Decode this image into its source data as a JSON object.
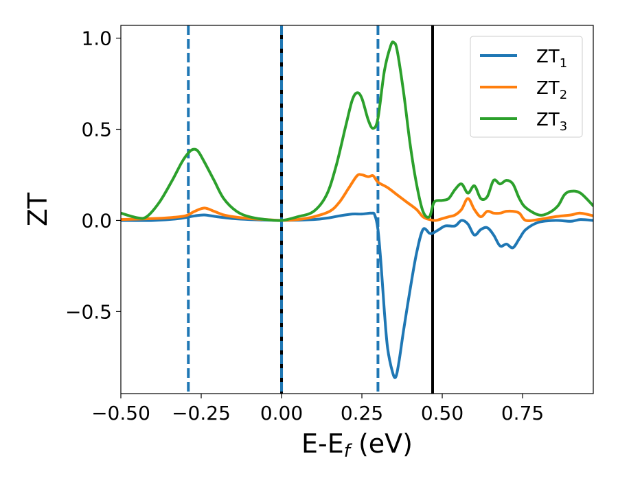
{
  "chart_data": {
    "type": "line",
    "title": "",
    "xlabel": {
      "main": "E-E",
      "sub": "f",
      "suffix": " (eV)"
    },
    "ylabel": "ZT",
    "xlim": [
      -0.5,
      0.97
    ],
    "ylim": [
      -0.95,
      1.07
    ],
    "xticks": [
      -0.5,
      -0.25,
      0.0,
      0.25,
      0.5,
      0.75
    ],
    "xtick_labels": [
      "−0.50",
      "−0.25",
      "0.00",
      "0.25",
      "0.50",
      "0.75"
    ],
    "yticks": [
      -0.5,
      0.0,
      0.5,
      1.0
    ],
    "ytick_labels": [
      "−0.5",
      "0.0",
      "0.5",
      "1.0"
    ],
    "grid": false,
    "legend_position": "top-right",
    "vlines": [
      {
        "x": -0.29,
        "style": "dashed",
        "color": "#1f77b4"
      },
      {
        "x": 0.0,
        "style": "solid",
        "color": "#000000"
      },
      {
        "x": 0.0,
        "style": "dashed",
        "color": "#1f77b4"
      },
      {
        "x": 0.3,
        "style": "dashed",
        "color": "#1f77b4"
      },
      {
        "x": 0.47,
        "style": "solid",
        "color": "#000000"
      }
    ],
    "series": [
      {
        "name": "ZT",
        "sub": "1",
        "color": "#1f77b4",
        "points": [
          [
            -0.5,
            0.0
          ],
          [
            -0.4,
            0.0
          ],
          [
            -0.32,
            0.01
          ],
          [
            -0.27,
            0.025
          ],
          [
            -0.24,
            0.03
          ],
          [
            -0.2,
            0.02
          ],
          [
            -0.15,
            0.01
          ],
          [
            -0.1,
            0.005
          ],
          [
            0.0,
            0.0
          ],
          [
            0.1,
            0.005
          ],
          [
            0.15,
            0.015
          ],
          [
            0.18,
            0.025
          ],
          [
            0.22,
            0.035
          ],
          [
            0.25,
            0.035
          ],
          [
            0.28,
            0.04
          ],
          [
            0.29,
            0.03
          ],
          [
            0.3,
            -0.05
          ],
          [
            0.31,
            -0.25
          ],
          [
            0.32,
            -0.5
          ],
          [
            0.33,
            -0.7
          ],
          [
            0.345,
            -0.83
          ],
          [
            0.355,
            -0.86
          ],
          [
            0.365,
            -0.78
          ],
          [
            0.38,
            -0.6
          ],
          [
            0.4,
            -0.38
          ],
          [
            0.42,
            -0.18
          ],
          [
            0.44,
            -0.05
          ],
          [
            0.46,
            -0.07
          ],
          [
            0.47,
            -0.07
          ],
          [
            0.49,
            -0.05
          ],
          [
            0.51,
            -0.03
          ],
          [
            0.54,
            -0.03
          ],
          [
            0.56,
            0.0
          ],
          [
            0.58,
            -0.02
          ],
          [
            0.6,
            -0.08
          ],
          [
            0.62,
            -0.05
          ],
          [
            0.64,
            -0.04
          ],
          [
            0.66,
            -0.08
          ],
          [
            0.68,
            -0.14
          ],
          [
            0.7,
            -0.13
          ],
          [
            0.72,
            -0.15
          ],
          [
            0.74,
            -0.1
          ],
          [
            0.76,
            -0.05
          ],
          [
            0.8,
            -0.01
          ],
          [
            0.85,
            0.0
          ],
          [
            0.9,
            -0.005
          ],
          [
            0.93,
            0.005
          ],
          [
            0.97,
            0.0
          ]
        ]
      },
      {
        "name": "ZT",
        "sub": "2",
        "color": "#ff7f0e",
        "points": [
          [
            -0.5,
            0.005
          ],
          [
            -0.4,
            0.01
          ],
          [
            -0.35,
            0.015
          ],
          [
            -0.3,
            0.025
          ],
          [
            -0.27,
            0.05
          ],
          [
            -0.24,
            0.068
          ],
          [
            -0.21,
            0.05
          ],
          [
            -0.18,
            0.03
          ],
          [
            -0.15,
            0.02
          ],
          [
            -0.1,
            0.01
          ],
          [
            -0.05,
            0.005
          ],
          [
            0.0,
            0.0
          ],
          [
            0.05,
            0.005
          ],
          [
            0.1,
            0.02
          ],
          [
            0.15,
            0.05
          ],
          [
            0.18,
            0.1
          ],
          [
            0.21,
            0.18
          ],
          [
            0.235,
            0.245
          ],
          [
            0.25,
            0.25
          ],
          [
            0.27,
            0.24
          ],
          [
            0.285,
            0.245
          ],
          [
            0.3,
            0.21
          ],
          [
            0.33,
            0.18
          ],
          [
            0.36,
            0.14
          ],
          [
            0.39,
            0.1
          ],
          [
            0.42,
            0.06
          ],
          [
            0.44,
            0.02
          ],
          [
            0.46,
            0.005
          ],
          [
            0.48,
            0.0
          ],
          [
            0.5,
            0.01
          ],
          [
            0.52,
            0.02
          ],
          [
            0.54,
            0.03
          ],
          [
            0.56,
            0.06
          ],
          [
            0.58,
            0.12
          ],
          [
            0.6,
            0.06
          ],
          [
            0.62,
            0.02
          ],
          [
            0.64,
            0.05
          ],
          [
            0.66,
            0.04
          ],
          [
            0.68,
            0.04
          ],
          [
            0.7,
            0.05
          ],
          [
            0.72,
            0.05
          ],
          [
            0.74,
            0.04
          ],
          [
            0.76,
            0.0
          ],
          [
            0.8,
            0.005
          ],
          [
            0.85,
            0.02
          ],
          [
            0.9,
            0.03
          ],
          [
            0.93,
            0.04
          ],
          [
            0.97,
            0.025
          ]
        ]
      },
      {
        "name": "ZT",
        "sub": "3",
        "color": "#2ca02c",
        "points": [
          [
            -0.5,
            0.04
          ],
          [
            -0.45,
            0.015
          ],
          [
            -0.42,
            0.02
          ],
          [
            -0.38,
            0.1
          ],
          [
            -0.34,
            0.22
          ],
          [
            -0.31,
            0.32
          ],
          [
            -0.29,
            0.37
          ],
          [
            -0.275,
            0.39
          ],
          [
            -0.26,
            0.38
          ],
          [
            -0.24,
            0.32
          ],
          [
            -0.21,
            0.22
          ],
          [
            -0.18,
            0.12
          ],
          [
            -0.14,
            0.05
          ],
          [
            -0.1,
            0.02
          ],
          [
            -0.05,
            0.005
          ],
          [
            0.0,
            0.0
          ],
          [
            0.05,
            0.02
          ],
          [
            0.1,
            0.05
          ],
          [
            0.14,
            0.14
          ],
          [
            0.17,
            0.3
          ],
          [
            0.2,
            0.52
          ],
          [
            0.22,
            0.66
          ],
          [
            0.235,
            0.7
          ],
          [
            0.25,
            0.67
          ],
          [
            0.27,
            0.55
          ],
          [
            0.285,
            0.505
          ],
          [
            0.3,
            0.56
          ],
          [
            0.32,
            0.82
          ],
          [
            0.34,
            0.96
          ],
          [
            0.35,
            0.975
          ],
          [
            0.36,
            0.93
          ],
          [
            0.38,
            0.7
          ],
          [
            0.4,
            0.42
          ],
          [
            0.42,
            0.2
          ],
          [
            0.44,
            0.05
          ],
          [
            0.46,
            0.02
          ],
          [
            0.475,
            0.1
          ],
          [
            0.5,
            0.11
          ],
          [
            0.52,
            0.12
          ],
          [
            0.54,
            0.17
          ],
          [
            0.56,
            0.2
          ],
          [
            0.58,
            0.15
          ],
          [
            0.6,
            0.19
          ],
          [
            0.62,
            0.12
          ],
          [
            0.64,
            0.13
          ],
          [
            0.66,
            0.22
          ],
          [
            0.68,
            0.2
          ],
          [
            0.7,
            0.22
          ],
          [
            0.72,
            0.2
          ],
          [
            0.74,
            0.12
          ],
          [
            0.76,
            0.07
          ],
          [
            0.8,
            0.03
          ],
          [
            0.83,
            0.04
          ],
          [
            0.86,
            0.08
          ],
          [
            0.88,
            0.14
          ],
          [
            0.9,
            0.16
          ],
          [
            0.93,
            0.15
          ],
          [
            0.97,
            0.08
          ]
        ]
      }
    ]
  }
}
